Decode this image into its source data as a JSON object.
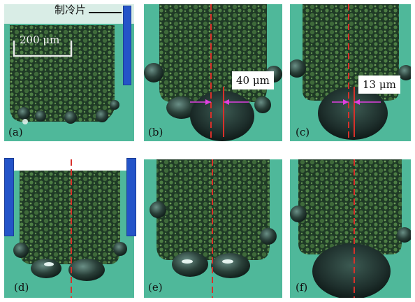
{
  "callout": {
    "label": "制冷片"
  },
  "scale_bar": {
    "label": "200 μm"
  },
  "panels": [
    {
      "label": "(a)"
    },
    {
      "label": "(b)",
      "gap_label": "40 μm"
    },
    {
      "label": "(c)",
      "gap_label": "13 μm"
    },
    {
      "label": "(d)"
    },
    {
      "label": "(e)"
    },
    {
      "label": "(f)"
    }
  ],
  "colors": {
    "background": "#4fb89a",
    "cooler": "#2454c8",
    "centerline": "#d8302a",
    "gap_arrow": "#e040e0"
  }
}
